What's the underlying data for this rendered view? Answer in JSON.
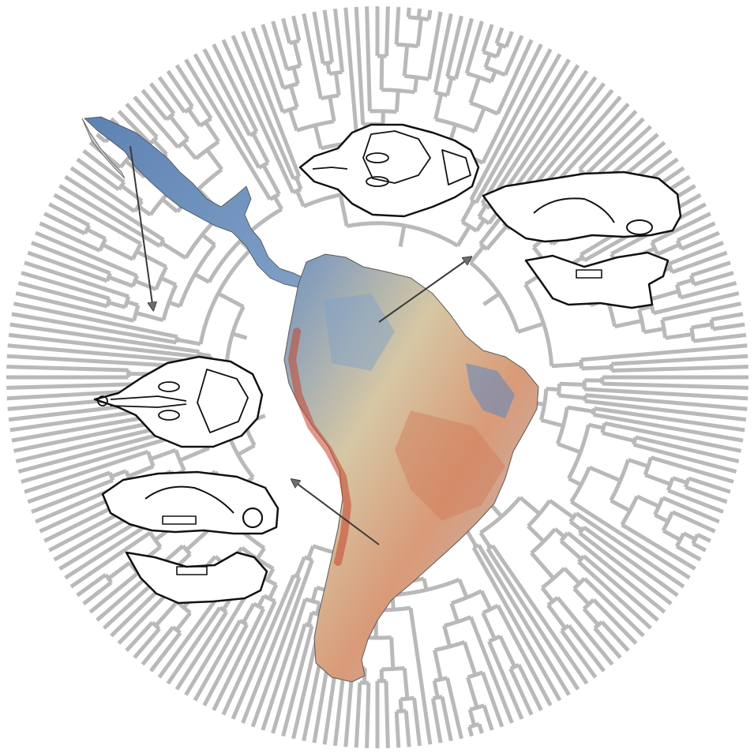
{
  "figure": {
    "background": "#ffffff",
    "tree_color": "#b9b9b9",
    "arrow_color": "#3a3a3a",
    "outline_color": "#111111"
  },
  "map_gradient": {
    "low": "#4a7bb5",
    "mid": "#d8c9a6",
    "high": "#c4452f"
  },
  "icons": [
    "phylogeny-tree-icon",
    "central-america-map-icon",
    "south-america-map-icon",
    "skull-ventral-icon",
    "skull-lateral-icon",
    "arrow-icon"
  ]
}
